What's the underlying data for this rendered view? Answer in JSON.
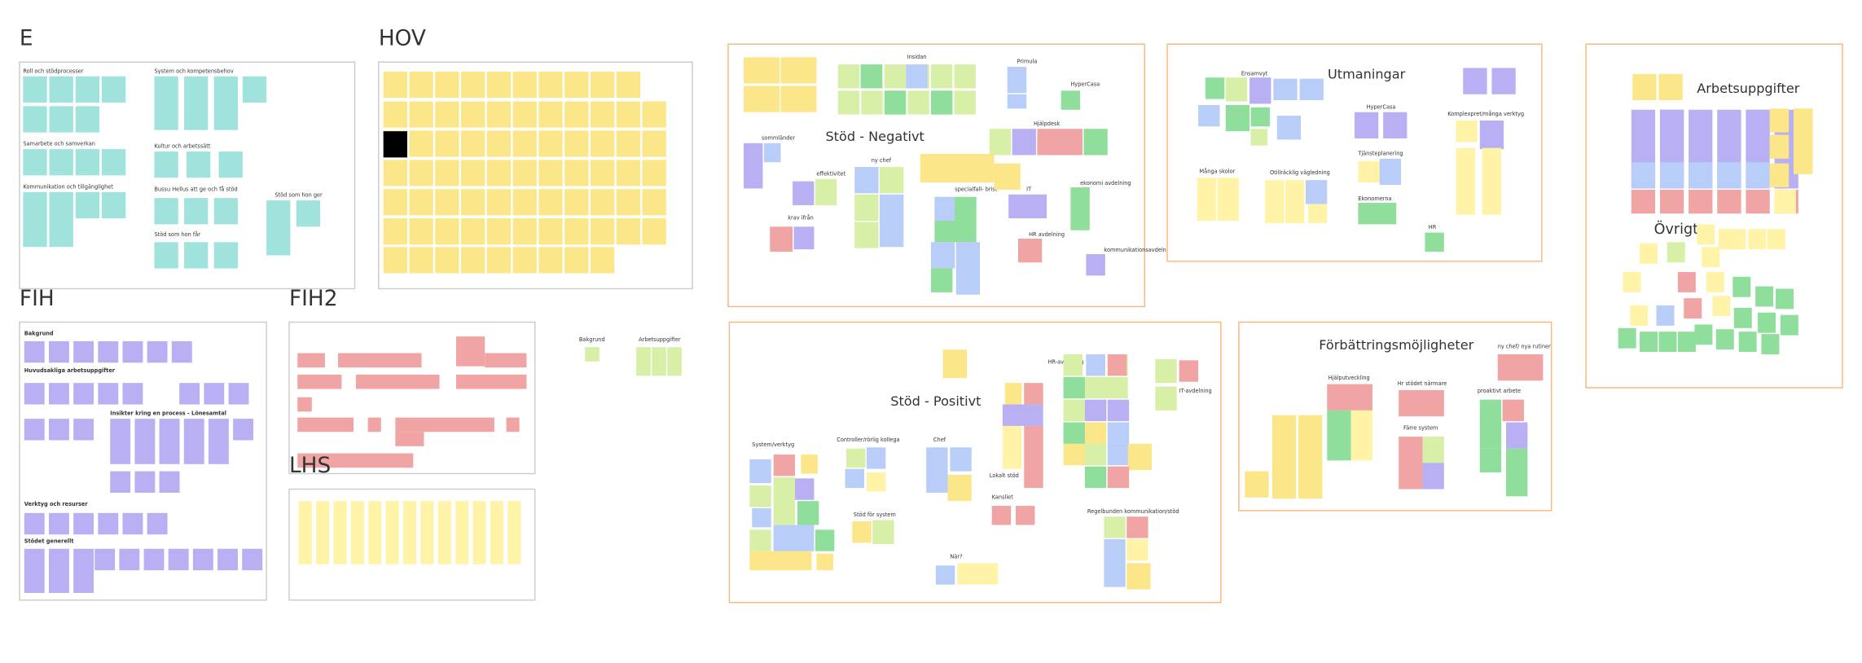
{
  "frames": [
    {
      "title": "E",
      "labels": [
        "Roll och stödprocesser",
        "System och kompetensbehov",
        "Samarbete och samverkan",
        "Kultur och arbetssätt",
        "Kommunikation och tillgänglighet",
        "Bussu Hellus att ge och få stöd",
        "Stöd som hon ger",
        "Stöd som hon får"
      ]
    },
    {
      "title": "HOV"
    },
    {
      "title": "FIH",
      "labels": [
        "Bakgrund",
        "Huvudsakliga arbetsuppgifter",
        "Insikter kring en process - Lönesamtal",
        "Verktyg och resurser",
        "Stödet generellt"
      ]
    },
    {
      "title": "FIH2"
    },
    {
      "title": "LHS"
    },
    {
      "title": "Stöd - Negativt",
      "labels": [
        "Insidan",
        "Primula",
        "HyperCasa",
        "Hjälpdesk",
        "ekonomi avdelning",
        "IT",
        "HR avdelning",
        "kommunikationsavdelning",
        "specialfall- brist",
        "ny chef",
        "effektivitet",
        "sommländer",
        "krav ifrån"
      ]
    },
    {
      "title": "Utmaningar",
      "labels": [
        "Ensamvyt",
        "HyperCasa",
        "Komplexpret/många verktyg",
        "Många skolor",
        "Otillräcklig vägledning",
        "Tjänsteplanering",
        "Ekonomerna",
        "HR"
      ]
    },
    {
      "title": "Arbetsuppgifter",
      "labels": [
        "Övrigt"
      ]
    },
    {
      "title": "Stöd - Positivt",
      "labels": [
        "HR-avdelning",
        "IT-avdelning",
        "Chef",
        "Lokalt stöd",
        "Kansliet",
        "Regelbunden kommunikation/stöd",
        "När?",
        "Stöd för system",
        "System/verktyg",
        "Controller/rörlig kollega"
      ]
    },
    {
      "title": "Förbättringsmöjligheter",
      "labels": [
        "ny chef/ nya rutiner",
        "Hjälputveckling",
        "Hr stödet närmare",
        "Färre system",
        "proaktivt arbete"
      ]
    }
  ],
  "loose_labels": [
    "Bakgrund",
    "Arbetsuppgifter"
  ]
}
